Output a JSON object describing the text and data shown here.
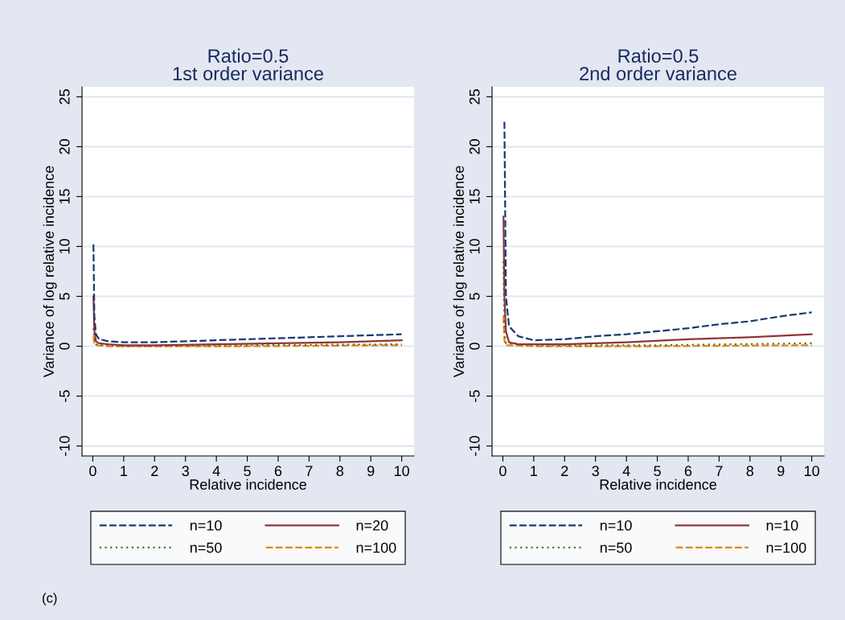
{
  "chart_data": [
    {
      "type": "line",
      "title": "Ratio=0.5\n1st order variance",
      "xlabel": "Relative incidence",
      "ylabel": "Variance of log relative incidence",
      "xlim": [
        -0.35,
        10.4
      ],
      "ylim": [
        -11,
        26
      ],
      "xticks": [
        0,
        1,
        2,
        3,
        4,
        5,
        6,
        7,
        8,
        9,
        10
      ],
      "yticks": [
        -10,
        -5,
        0,
        5,
        10,
        15,
        20,
        25
      ],
      "grid": "y",
      "legend": "bottom",
      "annotations": [
        "(c)"
      ],
      "series": [
        {
          "name": "n=10",
          "color": "#1a3a6e",
          "line_style": "dashed",
          "x": [
            0.02,
            0.05,
            0.1,
            0.2,
            0.5,
            1,
            2,
            3,
            4,
            5,
            6,
            7,
            8,
            9,
            10
          ],
          "values": [
            10.2,
            3,
            1.2,
            0.7,
            0.5,
            0.4,
            0.4,
            0.5,
            0.6,
            0.7,
            0.8,
            0.9,
            1,
            1.1,
            1.2
          ]
        },
        {
          "name": "n=20",
          "color": "#90353b",
          "line_style": "solid",
          "x": [
            0.02,
            0.05,
            0.1,
            0.2,
            0.5,
            1,
            2,
            4,
            6,
            8,
            10
          ],
          "values": [
            5,
            1.5,
            0.5,
            0.3,
            0.2,
            0.1,
            0.1,
            0.2,
            0.3,
            0.4,
            0.6
          ]
        },
        {
          "name": "n=50",
          "color": "#55752f",
          "line_style": "dotted",
          "x": [
            0.02,
            0.05,
            0.1,
            0.5,
            1,
            5,
            10
          ],
          "values": [
            1.8,
            0.5,
            0.2,
            0.1,
            0,
            0.1,
            0.2
          ]
        },
        {
          "name": "n=100",
          "color": "#e8860c",
          "line_style": "dashed",
          "x": [
            0.02,
            0.05,
            0.1,
            0.5,
            1,
            5,
            10
          ],
          "values": [
            1,
            0.3,
            0.1,
            0,
            0,
            0,
            0.1
          ]
        }
      ]
    },
    {
      "type": "line",
      "title": "Ratio=0.5\n2nd order variance",
      "xlabel": "Relative incidence",
      "ylabel": "Variance of log relative incidence",
      "xlim": [
        -0.35,
        10.4
      ],
      "ylim": [
        -11,
        26
      ],
      "xticks": [
        0,
        1,
        2,
        3,
        4,
        5,
        6,
        7,
        8,
        9,
        10
      ],
      "yticks": [
        -10,
        -5,
        0,
        5,
        10,
        15,
        20,
        25
      ],
      "grid": "y",
      "legend": "bottom",
      "series": [
        {
          "name": "n=10",
          "color": "#1a3a6e",
          "line_style": "dashed",
          "x": [
            0.05,
            0.1,
            0.2,
            0.5,
            1,
            2,
            3,
            4,
            5,
            6,
            7,
            8,
            9,
            10
          ],
          "values": [
            22.5,
            5,
            2,
            1,
            0.6,
            0.7,
            1,
            1.2,
            1.5,
            1.8,
            2.2,
            2.5,
            3,
            3.4
          ]
        },
        {
          "name": "n=10",
          "color": "#90353b",
          "line_style": "solid",
          "x": [
            0.02,
            0.05,
            0.1,
            0.2,
            0.5,
            1,
            2,
            4,
            6,
            8,
            10
          ],
          "values": [
            13,
            5,
            1.5,
            0.4,
            0.2,
            0.2,
            0.2,
            0.4,
            0.7,
            0.9,
            1.2
          ]
        },
        {
          "name": "n=50",
          "color": "#55752f",
          "line_style": "dotted",
          "x": [
            0.02,
            0.05,
            0.1,
            1,
            5,
            10
          ],
          "values": [
            8.5,
            1.5,
            0.3,
            0.1,
            0.1,
            0.3
          ]
        },
        {
          "name": "n=100",
          "color": "#e8860c",
          "line_style": "dashed",
          "x": [
            0.02,
            0.05,
            0.1,
            1,
            5,
            10
          ],
          "values": [
            3,
            0.6,
            0.1,
            0,
            0,
            0.1
          ]
        }
      ]
    }
  ]
}
